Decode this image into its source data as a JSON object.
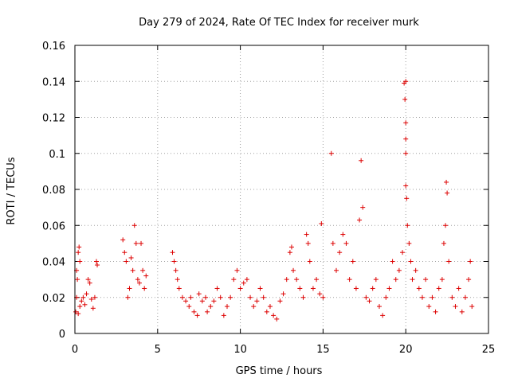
{
  "chart_data": {
    "type": "scatter",
    "title": "Day 279 of 2024, Rate Of TEC Index for receiver murk",
    "xlabel": "GPS time / hours",
    "ylabel": "ROTI / TECUs",
    "xlim": [
      0,
      25
    ],
    "ylim": [
      0,
      0.16
    ],
    "xticks": [
      0,
      5,
      10,
      15,
      20,
      25
    ],
    "xtick_labels": [
      "0",
      "5",
      "10",
      "15",
      "20",
      "25"
    ],
    "yticks": [
      0,
      0.02,
      0.04,
      0.06,
      0.08,
      0.1,
      0.12,
      0.14,
      0.16
    ],
    "ytick_labels": [
      "0",
      "0.02",
      "0.04",
      "0.06",
      "0.08",
      "0.1",
      "0.12",
      "0.14",
      "0.16"
    ],
    "grid": true,
    "marker": "+",
    "color": "#dd0000",
    "series": [
      {
        "name": "ROTI",
        "points": [
          [
            0.05,
            0.012
          ],
          [
            0.1,
            0.02
          ],
          [
            0.1,
            0.035
          ],
          [
            0.15,
            0.03
          ],
          [
            0.2,
            0.045
          ],
          [
            0.2,
            0.011
          ],
          [
            0.25,
            0.048
          ],
          [
            0.3,
            0.04
          ],
          [
            0.3,
            0.015
          ],
          [
            0.4,
            0.018
          ],
          [
            0.5,
            0.02
          ],
          [
            0.6,
            0.016
          ],
          [
            0.7,
            0.022
          ],
          [
            0.8,
            0.03
          ],
          [
            0.9,
            0.028
          ],
          [
            1.0,
            0.019
          ],
          [
            1.1,
            0.014
          ],
          [
            1.2,
            0.02
          ],
          [
            1.3,
            0.04
          ],
          [
            1.35,
            0.038
          ],
          [
            2.9,
            0.052
          ],
          [
            3.0,
            0.045
          ],
          [
            3.1,
            0.04
          ],
          [
            3.2,
            0.02
          ],
          [
            3.3,
            0.025
          ],
          [
            3.4,
            0.042
          ],
          [
            3.5,
            0.035
          ],
          [
            3.6,
            0.06
          ],
          [
            3.7,
            0.05
          ],
          [
            3.8,
            0.03
          ],
          [
            3.9,
            0.028
          ],
          [
            4.0,
            0.05
          ],
          [
            4.1,
            0.035
          ],
          [
            4.2,
            0.025
          ],
          [
            4.3,
            0.032
          ],
          [
            5.9,
            0.045
          ],
          [
            6.0,
            0.04
          ],
          [
            6.1,
            0.035
          ],
          [
            6.2,
            0.03
          ],
          [
            6.3,
            0.025
          ],
          [
            6.5,
            0.02
          ],
          [
            6.7,
            0.018
          ],
          [
            6.9,
            0.015
          ],
          [
            7.0,
            0.02
          ],
          [
            7.2,
            0.012
          ],
          [
            7.4,
            0.01
          ],
          [
            7.5,
            0.022
          ],
          [
            7.7,
            0.018
          ],
          [
            7.9,
            0.02
          ],
          [
            8.0,
            0.012
          ],
          [
            8.2,
            0.015
          ],
          [
            8.4,
            0.018
          ],
          [
            8.6,
            0.025
          ],
          [
            8.8,
            0.02
          ],
          [
            9.0,
            0.01
          ],
          [
            9.2,
            0.015
          ],
          [
            9.4,
            0.02
          ],
          [
            9.6,
            0.03
          ],
          [
            9.8,
            0.035
          ],
          [
            10.0,
            0.025
          ],
          [
            10.2,
            0.028
          ],
          [
            10.4,
            0.03
          ],
          [
            10.6,
            0.02
          ],
          [
            10.8,
            0.015
          ],
          [
            11.0,
            0.018
          ],
          [
            11.2,
            0.025
          ],
          [
            11.4,
            0.02
          ],
          [
            11.6,
            0.012
          ],
          [
            11.8,
            0.015
          ],
          [
            12.0,
            0.01
          ],
          [
            12.2,
            0.008
          ],
          [
            12.4,
            0.018
          ],
          [
            12.6,
            0.022
          ],
          [
            12.8,
            0.03
          ],
          [
            13.0,
            0.045
          ],
          [
            13.1,
            0.048
          ],
          [
            13.2,
            0.035
          ],
          [
            13.4,
            0.03
          ],
          [
            13.6,
            0.025
          ],
          [
            13.8,
            0.02
          ],
          [
            14.0,
            0.055
          ],
          [
            14.1,
            0.05
          ],
          [
            14.2,
            0.04
          ],
          [
            14.4,
            0.025
          ],
          [
            14.6,
            0.03
          ],
          [
            14.8,
            0.022
          ],
          [
            14.9,
            0.061
          ],
          [
            15.0,
            0.02
          ],
          [
            15.5,
            0.1
          ],
          [
            15.6,
            0.05
          ],
          [
            15.8,
            0.035
          ],
          [
            16.0,
            0.045
          ],
          [
            16.2,
            0.055
          ],
          [
            16.4,
            0.05
          ],
          [
            16.6,
            0.03
          ],
          [
            16.8,
            0.04
          ],
          [
            17.0,
            0.025
          ],
          [
            17.2,
            0.063
          ],
          [
            17.3,
            0.096
          ],
          [
            17.4,
            0.07
          ],
          [
            17.6,
            0.02
          ],
          [
            17.8,
            0.018
          ],
          [
            18.0,
            0.025
          ],
          [
            18.2,
            0.03
          ],
          [
            18.4,
            0.015
          ],
          [
            18.6,
            0.01
          ],
          [
            18.8,
            0.02
          ],
          [
            19.0,
            0.025
          ],
          [
            19.2,
            0.04
          ],
          [
            19.4,
            0.03
          ],
          [
            19.6,
            0.035
          ],
          [
            19.8,
            0.045
          ],
          [
            19.9,
            0.139
          ],
          [
            19.95,
            0.13
          ],
          [
            20.0,
            0.14
          ],
          [
            20.0,
            0.117
          ],
          [
            20.0,
            0.108
          ],
          [
            20.0,
            0.1
          ],
          [
            20.0,
            0.082
          ],
          [
            20.05,
            0.075
          ],
          [
            20.1,
            0.06
          ],
          [
            20.2,
            0.05
          ],
          [
            20.3,
            0.04
          ],
          [
            20.4,
            0.03
          ],
          [
            20.6,
            0.035
          ],
          [
            20.8,
            0.025
          ],
          [
            21.0,
            0.02
          ],
          [
            21.2,
            0.03
          ],
          [
            21.4,
            0.015
          ],
          [
            21.6,
            0.02
          ],
          [
            21.8,
            0.012
          ],
          [
            22.0,
            0.025
          ],
          [
            22.2,
            0.03
          ],
          [
            22.3,
            0.05
          ],
          [
            22.4,
            0.06
          ],
          [
            22.45,
            0.084
          ],
          [
            22.5,
            0.078
          ],
          [
            22.6,
            0.04
          ],
          [
            22.8,
            0.02
          ],
          [
            23.0,
            0.015
          ],
          [
            23.2,
            0.025
          ],
          [
            23.4,
            0.012
          ],
          [
            23.6,
            0.02
          ],
          [
            23.8,
            0.03
          ],
          [
            23.9,
            0.04
          ],
          [
            24.0,
            0.015
          ]
        ]
      }
    ]
  }
}
